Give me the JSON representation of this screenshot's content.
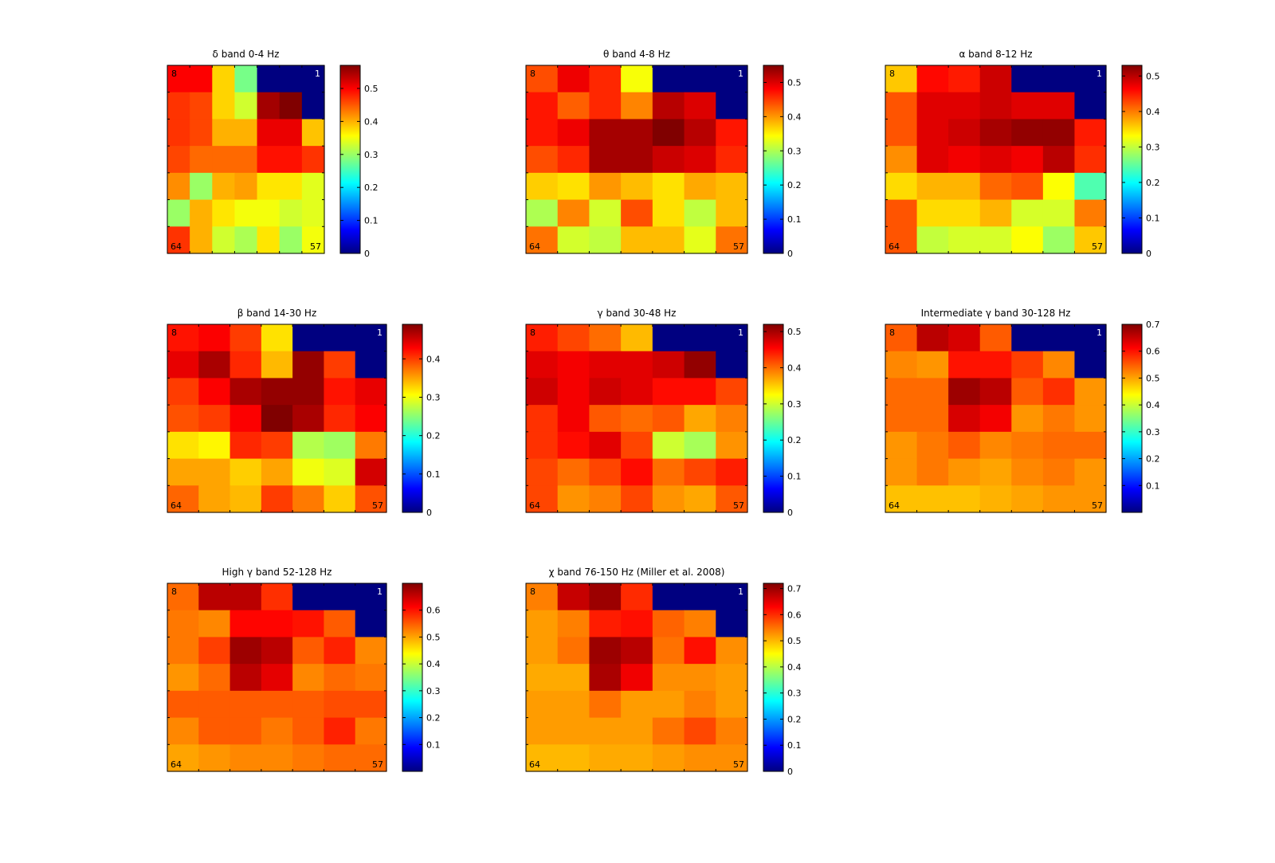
{
  "figure": {
    "corner_labels": {
      "top_left": "8",
      "top_right": "1",
      "bottom_left": "64",
      "bottom_right": "57"
    }
  },
  "chart_data": [
    {
      "type": "heatmap",
      "title": "δ band 0-4 Hz",
      "clim": [
        0,
        0.57
      ],
      "colorbar_ticks": [
        0,
        0.1,
        0.2,
        0.3,
        0.4,
        0.5
      ],
      "z": [
        [
          0.5,
          0.5,
          0.38,
          0.28,
          0.0,
          0.0,
          0.0
        ],
        [
          0.47,
          0.46,
          0.38,
          0.33,
          0.55,
          0.57,
          0.0
        ],
        [
          0.47,
          0.46,
          0.4,
          0.4,
          0.51,
          0.51,
          0.39
        ],
        [
          0.46,
          0.44,
          0.44,
          0.44,
          0.49,
          0.49,
          0.47
        ],
        [
          0.42,
          0.3,
          0.4,
          0.41,
          0.37,
          0.37,
          0.34
        ],
        [
          0.3,
          0.4,
          0.37,
          0.35,
          0.35,
          0.33,
          0.34
        ],
        [
          0.47,
          0.4,
          0.33,
          0.31,
          0.37,
          0.3,
          0.35
        ]
      ]
    },
    {
      "type": "heatmap",
      "title": "θ band 4-8 Hz",
      "clim": [
        0,
        0.55
      ],
      "colorbar_ticks": [
        0,
        0.1,
        0.2,
        0.3,
        0.4,
        0.5
      ],
      "z": [
        [
          0.44,
          0.49,
          0.46,
          0.34,
          0.0,
          0.0,
          0.0
        ],
        [
          0.47,
          0.43,
          0.46,
          0.41,
          0.52,
          0.5,
          0.0
        ],
        [
          0.47,
          0.49,
          0.53,
          0.53,
          0.55,
          0.52,
          0.47
        ],
        [
          0.44,
          0.46,
          0.53,
          0.53,
          0.51,
          0.5,
          0.46
        ],
        [
          0.37,
          0.36,
          0.4,
          0.38,
          0.36,
          0.39,
          0.38
        ],
        [
          0.3,
          0.41,
          0.32,
          0.44,
          0.36,
          0.31,
          0.38
        ],
        [
          0.42,
          0.32,
          0.31,
          0.38,
          0.38,
          0.33,
          0.42
        ]
      ]
    },
    {
      "type": "heatmap",
      "title": "α band 8-12 Hz",
      "clim": [
        0,
        0.53
      ],
      "colorbar_ticks": [
        0,
        0.1,
        0.2,
        0.3,
        0.4,
        0.5
      ],
      "z": [
        [
          0.36,
          0.46,
          0.45,
          0.49,
          0.0,
          0.0,
          0.0
        ],
        [
          0.42,
          0.48,
          0.48,
          0.49,
          0.48,
          0.48,
          0.0
        ],
        [
          0.42,
          0.48,
          0.49,
          0.51,
          0.52,
          0.52,
          0.45
        ],
        [
          0.39,
          0.48,
          0.47,
          0.48,
          0.47,
          0.5,
          0.44
        ],
        [
          0.35,
          0.37,
          0.37,
          0.41,
          0.42,
          0.33,
          0.24
        ],
        [
          0.42,
          0.35,
          0.35,
          0.37,
          0.31,
          0.31,
          0.4
        ],
        [
          0.42,
          0.3,
          0.31,
          0.31,
          0.33,
          0.28,
          0.36
        ]
      ]
    },
    {
      "type": "heatmap",
      "title": "β band 14-30 Hz",
      "clim": [
        0,
        0.49
      ],
      "colorbar_ticks": [
        0,
        0.1,
        0.2,
        0.3,
        0.4
      ],
      "z": [
        [
          0.42,
          0.43,
          0.4,
          0.32,
          0.0,
          0.0,
          0.0
        ],
        [
          0.44,
          0.47,
          0.41,
          0.34,
          0.48,
          0.4,
          0.0
        ],
        [
          0.4,
          0.43,
          0.47,
          0.48,
          0.48,
          0.42,
          0.44
        ],
        [
          0.39,
          0.4,
          0.43,
          0.49,
          0.47,
          0.41,
          0.43
        ],
        [
          0.32,
          0.31,
          0.41,
          0.4,
          0.27,
          0.26,
          0.37
        ],
        [
          0.35,
          0.35,
          0.33,
          0.35,
          0.3,
          0.29,
          0.45
        ],
        [
          0.38,
          0.35,
          0.34,
          0.4,
          0.37,
          0.33,
          0.39
        ]
      ]
    },
    {
      "type": "heatmap",
      "title": "γ band 30-48 Hz",
      "clim": [
        0,
        0.52
      ],
      "colorbar_ticks": [
        0,
        0.1,
        0.2,
        0.3,
        0.4,
        0.5
      ],
      "z": [
        [
          0.44,
          0.42,
          0.4,
          0.36,
          0.0,
          0.0,
          0.0
        ],
        [
          0.47,
          0.46,
          0.47,
          0.47,
          0.48,
          0.51,
          0.0
        ],
        [
          0.48,
          0.46,
          0.48,
          0.47,
          0.45,
          0.45,
          0.42
        ],
        [
          0.43,
          0.46,
          0.41,
          0.4,
          0.41,
          0.37,
          0.39
        ],
        [
          0.43,
          0.45,
          0.47,
          0.42,
          0.3,
          0.28,
          0.38
        ],
        [
          0.42,
          0.4,
          0.42,
          0.45,
          0.4,
          0.42,
          0.44
        ],
        [
          0.42,
          0.38,
          0.39,
          0.42,
          0.38,
          0.37,
          0.41
        ]
      ]
    },
    {
      "type": "heatmap",
      "title": "Intermediate γ band 30-128 Hz",
      "clim": [
        0,
        0.7
      ],
      "colorbar_ticks": [
        0.1,
        0.2,
        0.3,
        0.4,
        0.5,
        0.6,
        0.7
      ],
      "z": [
        [
          0.55,
          0.66,
          0.64,
          0.55,
          0.0,
          0.0,
          0.0
        ],
        [
          0.52,
          0.51,
          0.6,
          0.6,
          0.57,
          0.52,
          0.0
        ],
        [
          0.54,
          0.54,
          0.68,
          0.66,
          0.55,
          0.58,
          0.51
        ],
        [
          0.54,
          0.54,
          0.64,
          0.62,
          0.51,
          0.53,
          0.51
        ],
        [
          0.51,
          0.53,
          0.55,
          0.52,
          0.53,
          0.54,
          0.54
        ],
        [
          0.51,
          0.53,
          0.51,
          0.5,
          0.52,
          0.53,
          0.51
        ],
        [
          0.48,
          0.48,
          0.48,
          0.49,
          0.5,
          0.51,
          0.51
        ]
      ]
    },
    {
      "type": "heatmap",
      "title": "High γ band 52-128 Hz",
      "clim": [
        0,
        0.7
      ],
      "colorbar_ticks": [
        0.1,
        0.2,
        0.3,
        0.4,
        0.5,
        0.6
      ],
      "z": [
        [
          0.54,
          0.66,
          0.66,
          0.58,
          0.0,
          0.0,
          0.0
        ],
        [
          0.53,
          0.52,
          0.61,
          0.61,
          0.6,
          0.55,
          0.0
        ],
        [
          0.53,
          0.57,
          0.68,
          0.66,
          0.55,
          0.59,
          0.52
        ],
        [
          0.51,
          0.54,
          0.66,
          0.63,
          0.52,
          0.54,
          0.53
        ],
        [
          0.55,
          0.55,
          0.55,
          0.55,
          0.55,
          0.56,
          0.56
        ],
        [
          0.52,
          0.55,
          0.55,
          0.53,
          0.55,
          0.59,
          0.53
        ],
        [
          0.5,
          0.51,
          0.52,
          0.52,
          0.53,
          0.54,
          0.54
        ]
      ]
    },
    {
      "type": "heatmap",
      "title": "χ band 76-150 Hz (Miller et al. 2008)",
      "clim": [
        0,
        0.72
      ],
      "colorbar_ticks": [
        0,
        0.1,
        0.2,
        0.3,
        0.4,
        0.5,
        0.6,
        0.7
      ],
      "z": [
        [
          0.54,
          0.67,
          0.7,
          0.6,
          0.0,
          0.0,
          0.0
        ],
        [
          0.52,
          0.54,
          0.61,
          0.62,
          0.56,
          0.54,
          0.0
        ],
        [
          0.52,
          0.55,
          0.7,
          0.68,
          0.55,
          0.62,
          0.53
        ],
        [
          0.51,
          0.51,
          0.69,
          0.64,
          0.53,
          0.53,
          0.52
        ],
        [
          0.52,
          0.52,
          0.55,
          0.52,
          0.52,
          0.54,
          0.52
        ],
        [
          0.52,
          0.52,
          0.52,
          0.52,
          0.55,
          0.58,
          0.54
        ],
        [
          0.5,
          0.5,
          0.51,
          0.51,
          0.52,
          0.53,
          0.53
        ]
      ]
    }
  ]
}
